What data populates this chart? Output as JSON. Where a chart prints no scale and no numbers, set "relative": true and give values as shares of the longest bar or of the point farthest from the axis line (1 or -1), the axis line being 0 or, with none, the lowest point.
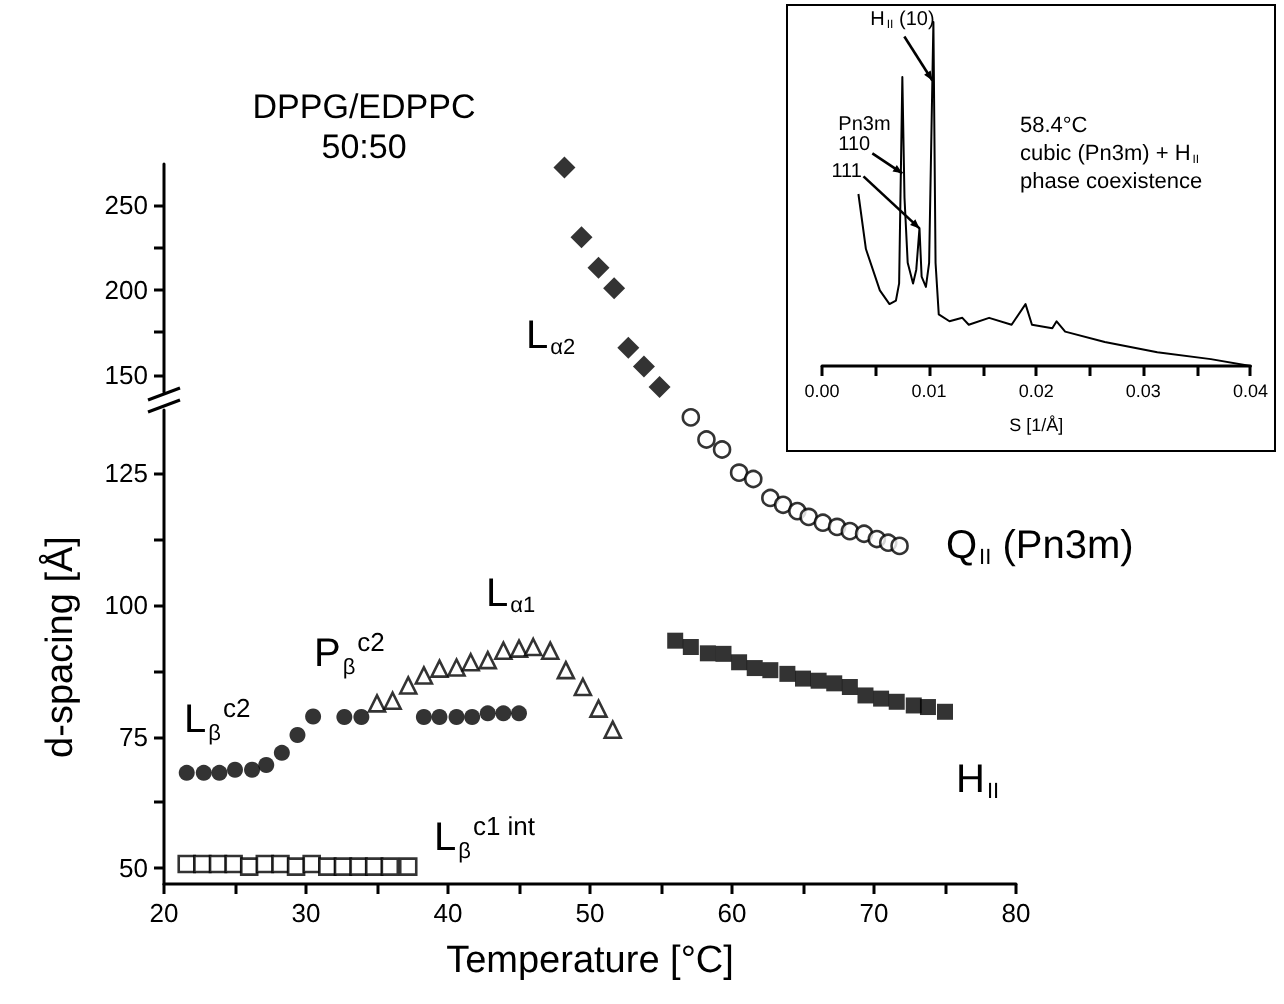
{
  "chart_data": [
    {
      "type": "scatter",
      "title": "DPPG/EDPPC",
      "subtitle": "50:50",
      "xlim": [
        20,
        80
      ],
      "ylim": [
        140,
        274
      ],
      "yticks": [
        150,
        {
          "value": 175,
          "label": null
        },
        200,
        {
          "value": 225,
          "label": null
        },
        250
      ],
      "tick_labels": "y",
      "series": [
        {
          "color": "#000000",
          "marker": "diamond",
          "x": [
            48.2,
            49.4,
            50.6,
            51.7,
            52.7,
            53.8,
            54.9
          ],
          "values": [
            272,
            231,
            213,
            201,
            166,
            155,
            143
          ]
        }
      ],
      "annotations": [
        "L$_{α2}$"
      ]
    },
    {
      "type": "scatter",
      "xlabel": "Temperature [°C]",
      "ylabel": "d-spacing [Å]",
      "xlim": [
        20,
        80
      ],
      "ylim": [
        47,
        137
      ],
      "xticks": [
        20,
        {
          "value": 25,
          "label": null
        },
        30,
        {
          "value": 35,
          "label": null
        },
        40,
        {
          "value": 45,
          "label": null
        },
        50,
        {
          "value": 55,
          "label": null
        },
        60,
        {
          "value": 65,
          "label": null
        },
        70,
        {
          "value": 75,
          "label": null
        },
        80
      ],
      "yticks": [
        50,
        {
          "value": 62.5,
          "label": null
        },
        75,
        {
          "value": 87.5,
          "label": null
        },
        100,
        {
          "value": 112.5,
          "label": null
        },
        125
      ],
      "series": [
        {
          "color": "#000000",
          "marker": "circle",
          "x": [
            57.1,
            58.2,
            59.3,
            60.5,
            61.5,
            62.7,
            63.6,
            64.6,
            65.4,
            66.4,
            67.4,
            68.3,
            69.3,
            70.2,
            71.0,
            71.8
          ],
          "values": [
            135.6,
            131.4,
            129.5,
            125.1,
            123.9,
            120.3,
            119,
            117.8,
            116.7,
            115.6,
            114.8,
            114,
            113.5,
            112.5,
            111.8,
            111.2
          ]
        },
        {
          "color": "#000000",
          "marker": "square",
          "x": [
            56.0,
            57.1,
            58.3,
            59.4,
            60.5,
            61.6,
            62.7,
            63.9,
            65.0,
            66.1,
            67.2,
            68.3,
            69.4,
            70.5,
            71.6,
            72.8,
            73.8,
            75.0
          ],
          "values": [
            93.2,
            92,
            90.8,
            90.7,
            89.1,
            88,
            87.6,
            86.9,
            86,
            85.6,
            85.1,
            84.4,
            82.8,
            82.2,
            81.6,
            80.9,
            80.6,
            79.7
          ]
        },
        {
          "color": "#000000",
          "marker": "circle",
          "x": [
            21.6,
            22.8,
            23.9,
            25.0,
            26.2,
            27.2,
            28.3,
            29.4,
            30.5,
            32.7,
            33.9,
            38.3,
            39.4,
            40.6,
            41.7,
            42.8,
            43.9,
            45.0
          ],
          "values": [
            68.1,
            68.1,
            68.1,
            68.7,
            68.7,
            69.6,
            71.9,
            75.3,
            78.8,
            78.7,
            78.7,
            78.7,
            78.7,
            78.7,
            78.7,
            79.4,
            79.4,
            79.4
          ]
        },
        {
          "color": "#000000",
          "marker": "triangle",
          "x": [
            35.0,
            36.1,
            37.2,
            38.3,
            39.4,
            40.6,
            41.6,
            42.8,
            43.9,
            45.0,
            46.0,
            47.2,
            48.3,
            49.5,
            50.6,
            51.6
          ],
          "values": [
            81.3,
            81.8,
            84.7,
            86.6,
            87.9,
            88.1,
            89.1,
            89.5,
            91.3,
            91.7,
            92,
            91.3,
            87.6,
            84.4,
            80.3,
            76.3
          ]
        },
        {
          "color": "#000000",
          "marker": "square",
          "x": [
            21.6,
            22.7,
            23.8,
            24.9,
            26.0,
            27.1,
            28.2,
            29.3,
            30.4,
            31.5,
            32.6,
            33.7,
            34.8,
            35.9,
            37.2
          ],
          "values": [
            50.8,
            50.8,
            50.8,
            50.8,
            50.3,
            50.8,
            50.8,
            50.3,
            50.8,
            50.3,
            50.3,
            50.3,
            50.3,
            50.3,
            50.3
          ]
        }
      ],
      "annotations": [
        "L$_{β}$$^{c2}$",
        "P$_{β}$$^{c2}$",
        "L$_{α1}$",
        "L$_{β}$$^{c1 int}$",
        "H$_{II}$",
        "Q$_{II}$ (Pn3m)"
      ]
    },
    {
      "type": "line",
      "relative": true,
      "xlabel": "S [1/Å]",
      "xlim": [
        0,
        0.04
      ],
      "xticks": [
        {
          "value": 0,
          "label": "0.00"
        },
        {
          "value": 0.005,
          "label": null
        },
        {
          "value": 0.01,
          "label": "0.01"
        },
        {
          "value": 0.015,
          "label": null
        },
        {
          "value": 0.02,
          "label": "0.02"
        },
        {
          "value": 0.025,
          "label": null
        },
        {
          "value": 0.03,
          "label": "0.03"
        },
        {
          "value": 0.035,
          "label": null
        },
        {
          "value": 0.04,
          "label": "0.04"
        }
      ],
      "series": [
        {
          "color": "#000000",
          "x": [
            0.0034,
            0.0041,
            0.0054,
            0.0063,
            0.0069,
            0.0072,
            0.0075,
            0.0077,
            0.008,
            0.0085,
            0.0088,
            0.0091,
            0.0093,
            0.0097,
            0.01,
            0.0104,
            0.0106,
            0.0109,
            0.0119,
            0.0131,
            0.0137,
            0.0156,
            0.0177,
            0.019,
            0.0196,
            0.0215,
            0.0219,
            0.0227,
            0.0264,
            0.0313,
            0.0363,
            0.04
          ],
          "values": [
            0.5,
            0.34,
            0.22,
            0.18,
            0.19,
            0.24,
            0.84,
            0.49,
            0.3,
            0.24,
            0.28,
            0.4,
            0.26,
            0.23,
            0.3,
            1.0,
            0.3,
            0.15,
            0.13,
            0.14,
            0.12,
            0.14,
            0.12,
            0.18,
            0.12,
            0.11,
            0.13,
            0.1,
            0.07,
            0.04,
            0.02,
            0
          ]
        }
      ],
      "annotations": [
        "58.4°C",
        "cubic (Pn3m) + H$_{II}$",
        "phase coexistence",
        {
          "text": "Pn3m\n110",
          "x": 0.0075,
          "y": 0.56
        },
        {
          "text": "111",
          "x": 0.0091,
          "y": 0.4
        },
        {
          "text": "H$_{II}$ (10)",
          "x": 0.0103,
          "y": 0.83
        }
      ]
    }
  ]
}
